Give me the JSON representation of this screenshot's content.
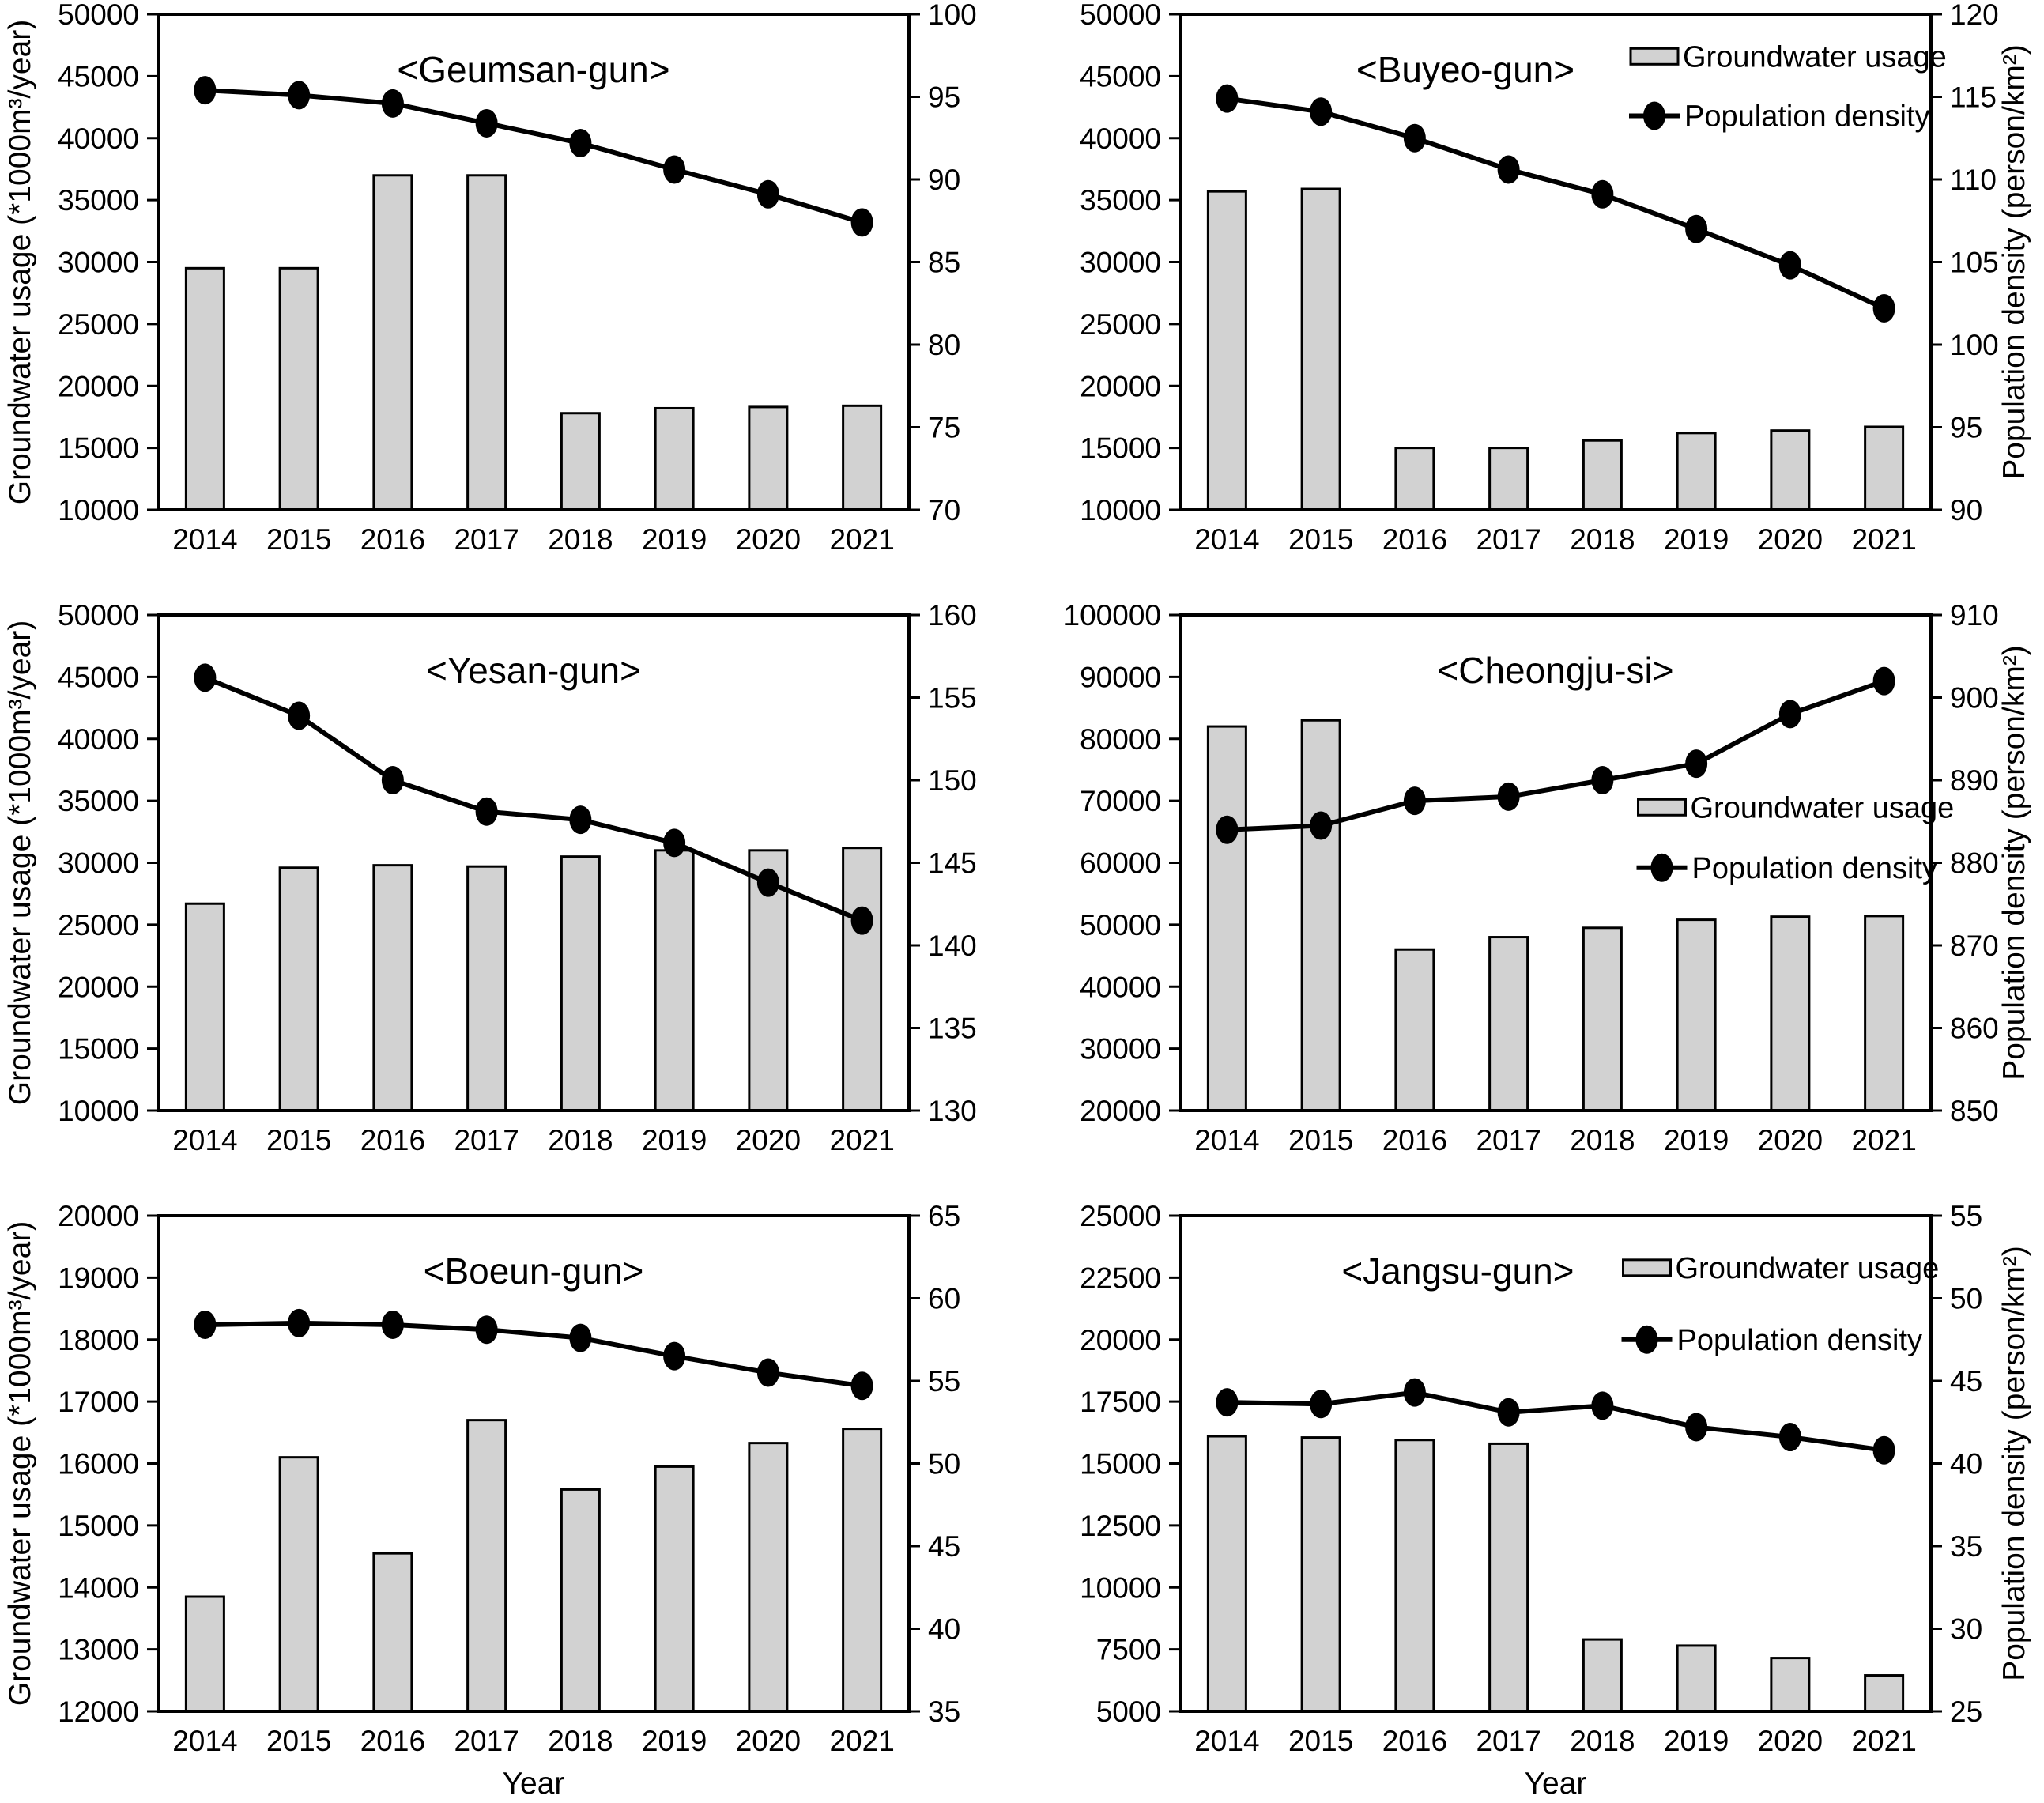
{
  "figure": {
    "years": [
      2014,
      2015,
      2016,
      2017,
      2018,
      2019,
      2020,
      2021
    ],
    "xlabel": "Year",
    "left_axis_title": "Groundwater usage (*1000m³/year)",
    "right_axis_title": "Population density (person/km²)",
    "legend_labels": {
      "bar": "Groundwater usage",
      "line": "Population density"
    },
    "colors": {
      "bar_fill": "#d2d2d2",
      "stroke": "#000000",
      "text": "#000000",
      "background": "#ffffff"
    }
  },
  "chart_data": [
    {
      "id": "geumsan-gun",
      "title": "<Geumsan-gun>",
      "type": "bar+line",
      "categories": [
        2014,
        2015,
        2016,
        2017,
        2018,
        2019,
        2020,
        2021
      ],
      "series": [
        {
          "name": "Groundwater usage",
          "type": "bar",
          "axis": "left",
          "values": [
            29500,
            29500,
            37000,
            37000,
            17800,
            18200,
            18300,
            18400
          ]
        },
        {
          "name": "Population density",
          "type": "line",
          "axis": "right",
          "values": [
            95.4,
            95.1,
            94.6,
            93.4,
            92.2,
            90.6,
            89.1,
            87.4
          ]
        }
      ],
      "left_axis": {
        "min": 10000,
        "max": 50000,
        "step": 5000,
        "show_title": true
      },
      "right_axis": {
        "min": 70,
        "max": 100,
        "step": 5,
        "show_title": false
      },
      "legend": null,
      "title_x_frac": 0.5,
      "show_xlabel": false
    },
    {
      "id": "buyeo-gun",
      "title": "<Buyeo-gun>",
      "type": "bar+line",
      "categories": [
        2014,
        2015,
        2016,
        2017,
        2018,
        2019,
        2020,
        2021
      ],
      "series": [
        {
          "name": "Groundwater usage",
          "type": "bar",
          "axis": "left",
          "values": [
            35700,
            35900,
            15000,
            15000,
            15600,
            16200,
            16400,
            16700
          ]
        },
        {
          "name": "Population density",
          "type": "line",
          "axis": "right",
          "values": [
            114.9,
            114.1,
            112.5,
            110.6,
            109.1,
            107.0,
            104.8,
            102.2
          ]
        }
      ],
      "left_axis": {
        "min": 10000,
        "max": 50000,
        "step": 5000,
        "show_title": false
      },
      "right_axis": {
        "min": 90,
        "max": 120,
        "step": 5,
        "show_title": true
      },
      "legend": {
        "x_frac": 0.6,
        "y1_frac": 0.085,
        "y2_frac": 0.205
      },
      "title_x_frac": 0.38,
      "show_xlabel": false
    },
    {
      "id": "yesan-gun",
      "title": "<Yesan-gun>",
      "type": "bar+line",
      "categories": [
        2014,
        2015,
        2016,
        2017,
        2018,
        2019,
        2020,
        2021
      ],
      "series": [
        {
          "name": "Groundwater usage",
          "type": "bar",
          "axis": "left",
          "values": [
            26700,
            29600,
            29800,
            29700,
            30500,
            31000,
            31000,
            31200
          ]
        },
        {
          "name": "Population density",
          "type": "line",
          "axis": "right",
          "values": [
            156.2,
            153.9,
            150.0,
            148.1,
            147.6,
            146.2,
            143.8,
            141.5
          ]
        }
      ],
      "left_axis": {
        "min": 10000,
        "max": 50000,
        "step": 5000,
        "show_title": true
      },
      "right_axis": {
        "min": 130,
        "max": 160,
        "step": 5,
        "show_title": false
      },
      "legend": null,
      "title_x_frac": 0.5,
      "show_xlabel": false
    },
    {
      "id": "cheongju-si",
      "title": "<Cheongju-si>",
      "type": "bar+line",
      "categories": [
        2014,
        2015,
        2016,
        2017,
        2018,
        2019,
        2020,
        2021
      ],
      "series": [
        {
          "name": "Groundwater usage",
          "type": "bar",
          "axis": "left",
          "values": [
            82000,
            83000,
            46000,
            48000,
            49500,
            50800,
            51300,
            51400
          ]
        },
        {
          "name": "Population density",
          "type": "line",
          "axis": "right",
          "values": [
            884,
            884.5,
            887.5,
            888,
            890,
            892,
            898,
            902
          ]
        }
      ],
      "left_axis": {
        "min": 20000,
        "max": 100000,
        "step": 10000,
        "show_title": false
      },
      "right_axis": {
        "min": 850,
        "max": 910,
        "step": 10,
        "show_title": true
      },
      "legend": {
        "x_frac": 0.61,
        "y1_frac": 0.388,
        "y2_frac": 0.51
      },
      "title_x_frac": 0.5,
      "show_xlabel": false
    },
    {
      "id": "boeun-gun",
      "title": "<Boeun-gun>",
      "type": "bar+line",
      "categories": [
        2014,
        2015,
        2016,
        2017,
        2018,
        2019,
        2020,
        2021
      ],
      "series": [
        {
          "name": "Groundwater usage",
          "type": "bar",
          "axis": "left",
          "values": [
            13850,
            16100,
            14550,
            16700,
            15580,
            15950,
            16330,
            16560
          ]
        },
        {
          "name": "Population density",
          "type": "line",
          "axis": "right",
          "values": [
            58.4,
            58.5,
            58.4,
            58.1,
            57.6,
            56.5,
            55.5,
            54.7
          ]
        }
      ],
      "left_axis": {
        "min": 12000,
        "max": 20000,
        "step": 1000,
        "show_title": true
      },
      "right_axis": {
        "min": 35,
        "max": 65,
        "step": 5,
        "show_title": false
      },
      "legend": null,
      "title_x_frac": 0.5,
      "show_xlabel": true
    },
    {
      "id": "jangsu-gun",
      "title": "<Jangsu-gun>",
      "type": "bar+line",
      "categories": [
        2014,
        2015,
        2016,
        2017,
        2018,
        2019,
        2020,
        2021
      ],
      "series": [
        {
          "name": "Groundwater usage",
          "type": "bar",
          "axis": "left",
          "values": [
            16100,
            16050,
            15950,
            15800,
            7900,
            7650,
            7150,
            6450
          ]
        },
        {
          "name": "Population density",
          "type": "line",
          "axis": "right",
          "values": [
            43.7,
            43.6,
            44.3,
            43.1,
            43.5,
            42.2,
            41.6,
            40.8
          ]
        }
      ],
      "left_axis": {
        "min": 5000,
        "max": 25000,
        "step": 2500,
        "show_title": false
      },
      "right_axis": {
        "min": 25,
        "max": 55,
        "step": 5,
        "show_title": true
      },
      "legend": {
        "x_frac": 0.59,
        "y1_frac": 0.105,
        "y2_frac": 0.25
      },
      "title_x_frac": 0.37,
      "show_xlabel": true
    }
  ]
}
